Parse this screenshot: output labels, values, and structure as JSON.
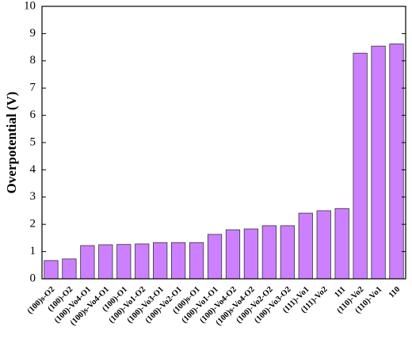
{
  "chart_data": {
    "type": "bar",
    "y_label": "Overpotential (V)",
    "categories": [
      "(100)s-O2",
      "(100)-O2",
      "(100)-Vo4-O1",
      "(100)s-Vo4-O1",
      "(100)-O1",
      "(100)-Vo1-O2",
      "(100)-Vo3-O1",
      "(100)-Vo2-O1",
      "(100)s-O1",
      "(100)-Vo1-O1",
      "(100)-Vo4-O2",
      "(100)s-Vo4-O2",
      "(100)-Vo2-O2",
      "(100)-Vo3-O2",
      "(111)-Vo1",
      "(111)-Vo2",
      "111",
      "(110)-Vo2",
      "(110)-Vo1",
      "110"
    ],
    "values": [
      0.67,
      0.73,
      1.22,
      1.25,
      1.26,
      1.28,
      1.33,
      1.33,
      1.33,
      1.63,
      1.8,
      1.83,
      1.95,
      1.95,
      2.41,
      2.5,
      2.58,
      8.28,
      8.54,
      8.62
    ],
    "color": "#cc80ff",
    "ylim": [
      0,
      10
    ],
    "yticks": [
      0,
      1,
      2,
      3,
      4,
      5,
      6,
      7,
      8,
      9,
      10
    ]
  }
}
